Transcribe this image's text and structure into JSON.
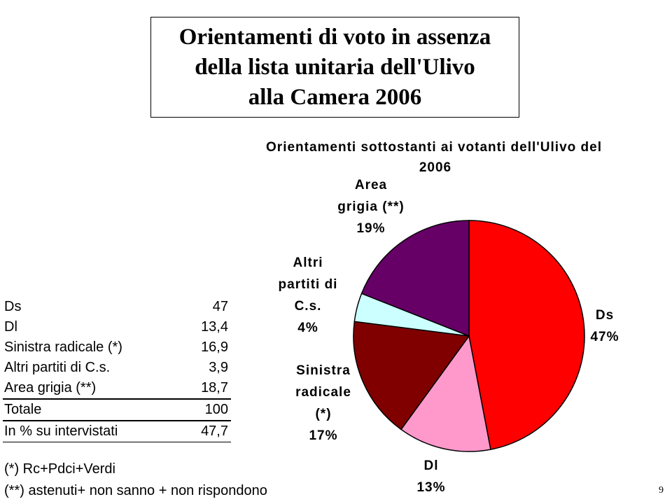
{
  "slide": {
    "title_lines": [
      "Orientamenti di voto in assenza",
      "della lista unitaria dell'Ulivo",
      "alla Camera 2006"
    ],
    "page_number": "9"
  },
  "table": {
    "rows": [
      {
        "label": "Ds",
        "value": "47"
      },
      {
        "label": "Dl",
        "value": "13,4"
      },
      {
        "label": "Sinistra radicale (*)",
        "value": "16,9"
      },
      {
        "label": "Altri partiti di C.s.",
        "value": "3,9"
      },
      {
        "label": "Area grigia (**)",
        "value": "18,7"
      }
    ],
    "total": {
      "label": "Totale",
      "value": "100"
    },
    "percent": {
      "label": "In % su intervistati",
      "value": "47,7"
    }
  },
  "notes": [
    "(*) Rc+Pdci+Verdi",
    "(**) astenuti+ non sanno + non rispondono"
  ],
  "chart_data": {
    "type": "pie",
    "title_lines": [
      "Orientamenti sottostanti ai votanti dell'Ulivo del",
      "2006"
    ],
    "slices": [
      {
        "name": "Ds",
        "value": 47,
        "pct_label": "47%",
        "color": "#ff0000",
        "label_lines": [
          "Ds"
        ]
      },
      {
        "name": "Dl",
        "value": 13,
        "pct_label": "13%",
        "color": "#ff99cc",
        "label_lines": [
          "Dl"
        ]
      },
      {
        "name": "Sinistra radicale (*)",
        "value": 17,
        "pct_label": "17%",
        "color": "#800000",
        "label_lines": [
          "Sinistra",
          "radicale",
          "(*)"
        ]
      },
      {
        "name": "Altri partiti di C.s.",
        "value": 4,
        "pct_label": "4%",
        "color": "#ccffff",
        "label_lines": [
          "Altri",
          "partiti di",
          "C.s."
        ]
      },
      {
        "name": "Area grigia (**)",
        "value": 19,
        "pct_label": "19%",
        "color": "#660066",
        "label_lines": [
          "Area",
          "grigia (**)"
        ]
      }
    ],
    "start_angle_deg": 0,
    "direction": "clockwise",
    "legend": "none"
  }
}
